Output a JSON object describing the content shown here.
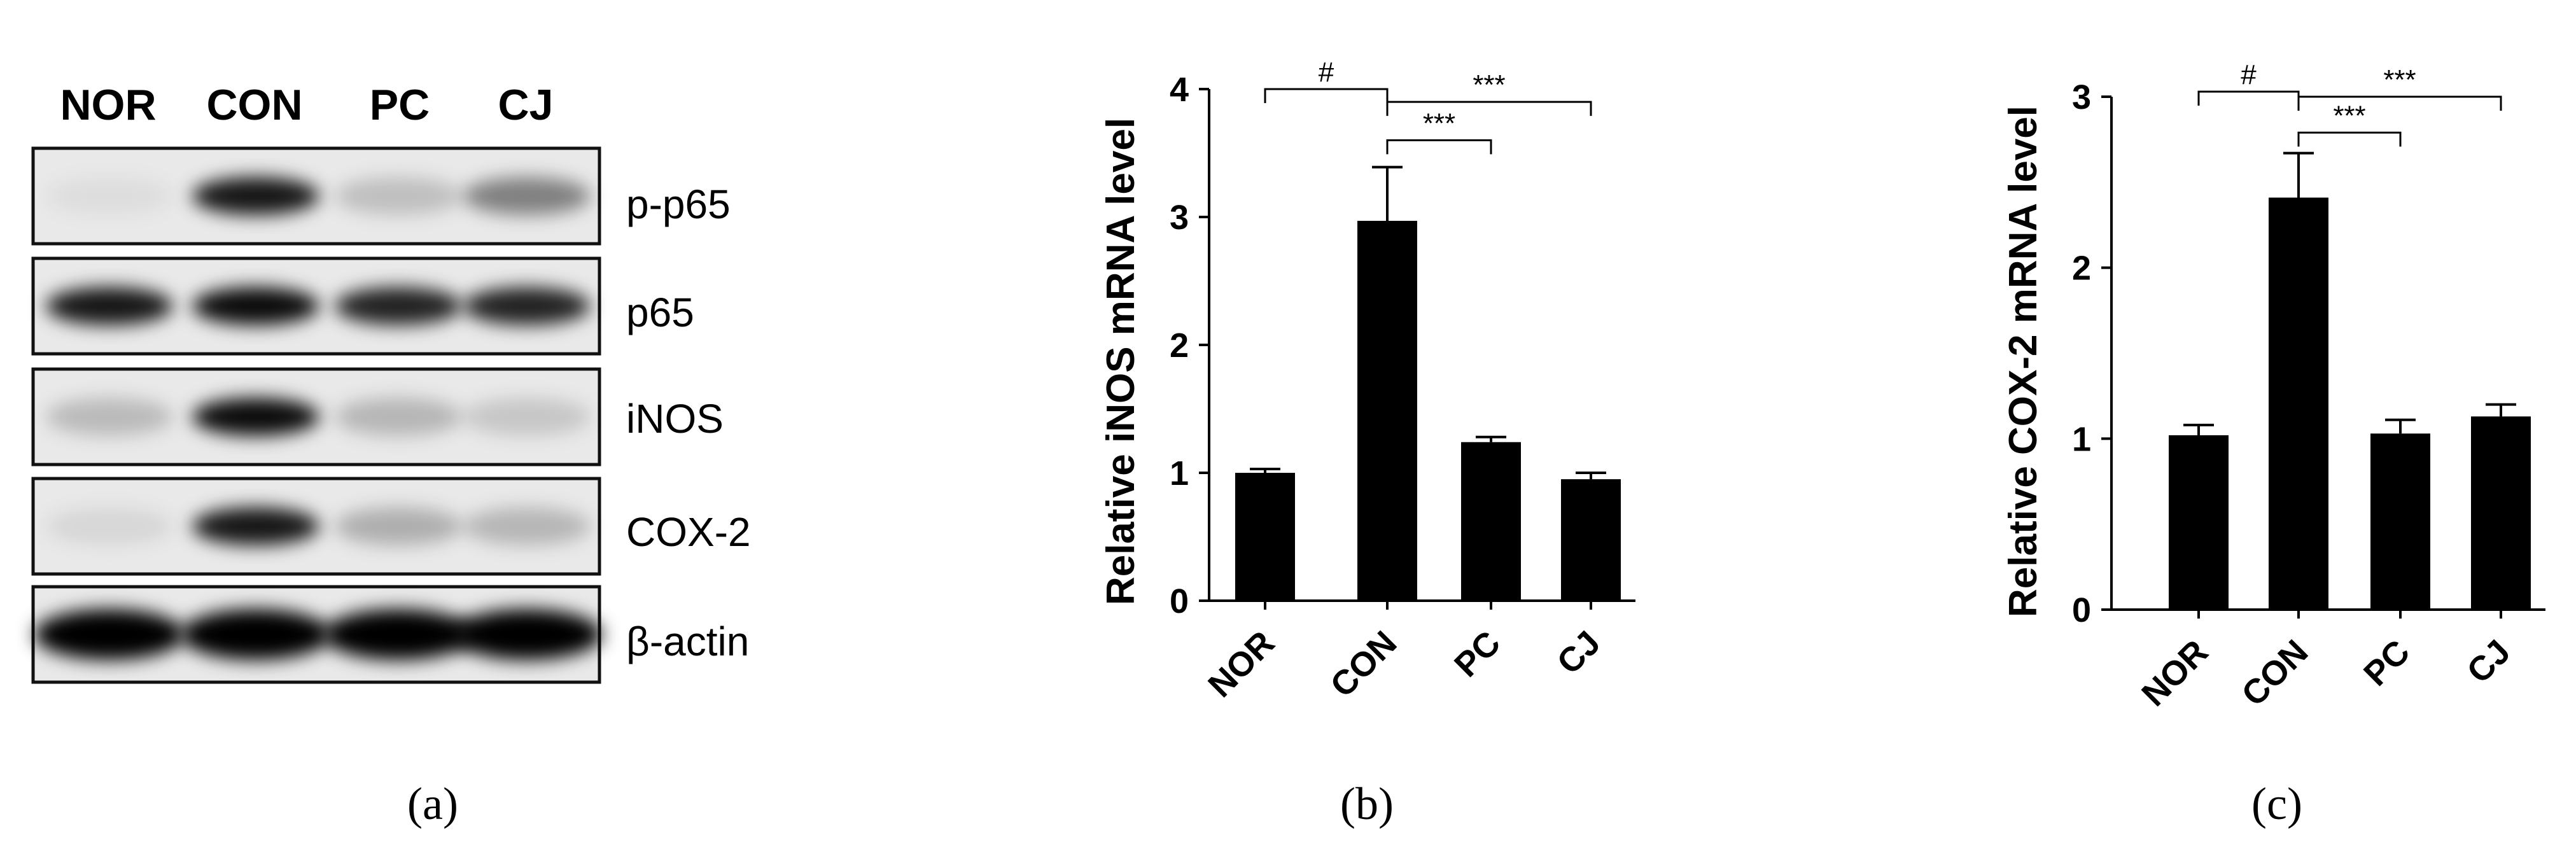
{
  "western_blot": {
    "lane_labels": [
      "NOR",
      "CON",
      "PC",
      "CJ"
    ],
    "proteins": [
      "p-p65",
      "p65",
      "iNOS",
      "COX-2",
      "β-actin"
    ],
    "band_intensity": [
      [
        0.05,
        0.9,
        0.18,
        0.45
      ],
      [
        0.9,
        0.95,
        0.85,
        0.85
      ],
      [
        0.2,
        0.95,
        0.22,
        0.15
      ],
      [
        0.08,
        0.9,
        0.25,
        0.22
      ],
      [
        1.0,
        1.0,
        1.0,
        1.0
      ]
    ]
  },
  "panel_labels": [
    "(a)",
    "(b)",
    "(c)"
  ],
  "chart_data": [
    {
      "type": "bar",
      "categories": [
        "NOR",
        "CON",
        "PC",
        "CJ"
      ],
      "values": [
        1.0,
        2.97,
        1.24,
        0.95
      ],
      "errors": [
        0.03,
        0.42,
        0.04,
        0.05
      ],
      "ylabel": "Relative iNOS mRNA level",
      "ylim": [
        0,
        4
      ],
      "yticks": [
        0,
        1,
        2,
        3,
        4
      ],
      "significance": [
        {
          "from": 0,
          "to": 1,
          "label": "#",
          "level": 4.0
        },
        {
          "from": 1,
          "to": 2,
          "label": "***",
          "level": 3.6
        },
        {
          "from": 1,
          "to": 3,
          "label": "***",
          "level": 3.9
        }
      ],
      "bar_color": "#000000"
    },
    {
      "type": "bar",
      "categories": [
        "NOR",
        "CON",
        "PC",
        "CJ"
      ],
      "values": [
        1.02,
        2.41,
        1.03,
        1.13
      ],
      "errors": [
        0.06,
        0.26,
        0.08,
        0.07
      ],
      "ylabel": "Relative COX-2 mRNA level",
      "ylim": [
        0,
        3
      ],
      "yticks": [
        0,
        1,
        2,
        3
      ],
      "significance": [
        {
          "from": 0,
          "to": 1,
          "label": "#",
          "level": 3.03
        },
        {
          "from": 1,
          "to": 2,
          "label": "***",
          "level": 2.79
        },
        {
          "from": 1,
          "to": 3,
          "label": "***",
          "level": 3.0
        }
      ],
      "bar_color": "#000000"
    }
  ]
}
